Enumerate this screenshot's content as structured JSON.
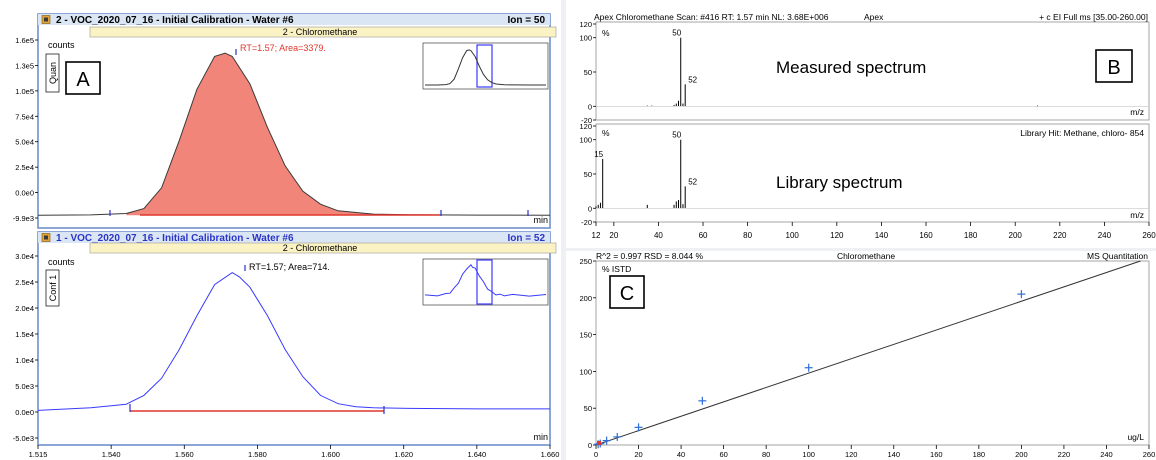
{
  "colors": {
    "panel_border": "#6f8fce",
    "header_bar": "#dbe6f5",
    "title_bar": "#fbf3c3",
    "area_fill": "#f2857a",
    "quan_trace": "#3a3a3a",
    "conf_trace": "#3a3aff",
    "baseline": "#e0362c",
    "marker": "#2a34c8",
    "calibration_marker": "#2f6fd8"
  },
  "icons": [
    "chromatogram-icon"
  ],
  "left": {
    "top": {
      "header": "2 - VOC_2020_07_16 - Initial Calibration - Water #6",
      "ion": "Ion = 50",
      "compound": "2 - Chloromethane",
      "ylabel": "counts",
      "side_tag": "Quan",
      "annotation": "RT=1.57; Area=3379.",
      "corner": "A",
      "yticks": [
        "1.6e5",
        "1.3e5",
        "1.0e5",
        "7.5e4",
        "5.0e4",
        "2.5e4",
        "0.0e0",
        "-9.9e3"
      ],
      "xunit": "min"
    },
    "bottom": {
      "header": "1 - VOC_2020_07_16 - Initial Calibration - Water #6",
      "ion": "Ion = 52",
      "compound": "2 - Chloromethane",
      "ylabel": "counts",
      "side_tag": "Conf 1",
      "annotation": "RT=1.57; Area=714.",
      "yticks": [
        "3.0e4",
        "2.5e4",
        "2.0e4",
        "1.5e4",
        "1.0e4",
        "5.0e3",
        "0.0e0",
        "-5.0e3"
      ],
      "xunit": "min"
    },
    "xticks": [
      "1.515",
      "1.540",
      "1.560",
      "1.580",
      "1.600",
      "1.620",
      "1.640",
      "1.660"
    ]
  },
  "right": {
    "spectrum_header": {
      "left": "Apex Chloromethane Scan: #416  RT: 1.57 min NL: 3.68E+006",
      "middle": "Apex",
      "right": "+ c EI Full ms [35.00-260.00]"
    },
    "measured": {
      "label": "Measured spectrum",
      "corner": "B",
      "yunit": "%",
      "yticks": [
        "120",
        "100",
        "50",
        "0",
        "-20"
      ],
      "peaks": [
        50,
        52
      ],
      "xunit": "m/z"
    },
    "library": {
      "label": "Library spectrum",
      "hit": "Library Hit: Methane, chloro- 854",
      "yunit": "%",
      "yticks": [
        "120",
        "100",
        "50",
        "0",
        "-20"
      ],
      "peaks": [
        15,
        50,
        52
      ],
      "xunit": "m/z"
    },
    "spectrum_xticks": [
      "12",
      "20",
      "40",
      "60",
      "80",
      "100",
      "120",
      "140",
      "160",
      "180",
      "200",
      "220",
      "240",
      "260"
    ],
    "calibration": {
      "header_left": "R^2 = 0.997  RSD = 8.044 %",
      "header_middle": "Chloromethane",
      "header_right": "MS Quantitation",
      "yunit": "% ISTD",
      "xunit": "ug/L",
      "corner": "C",
      "yticks": [
        "250",
        "200",
        "150",
        "100",
        "50",
        "0"
      ],
      "xticks": [
        "0",
        "20",
        "40",
        "60",
        "80",
        "100",
        "120",
        "140",
        "160",
        "180",
        "200",
        "220",
        "240",
        "260"
      ]
    }
  },
  "chart_data": [
    {
      "type": "line",
      "title": "2 - Chloromethane",
      "ylabel": "counts",
      "xlabel": "min",
      "xlim": [
        1.515,
        1.66
      ],
      "ylim": [
        -9900,
        160000
      ],
      "series": [
        {
          "name": "Ion = 50",
          "x": [
            1.515,
            1.53,
            1.54,
            1.545,
            1.55,
            1.555,
            1.56,
            1.565,
            1.568,
            1.57,
            1.575,
            1.58,
            1.585,
            1.59,
            1.595,
            1.6,
            1.61,
            1.62,
            1.64,
            1.66
          ],
          "y": [
            0,
            200,
            1500,
            6000,
            25000,
            68000,
            115000,
            145000,
            148000,
            145000,
            120000,
            80000,
            45000,
            22000,
            10000,
            4000,
            1000,
            300,
            100,
            0
          ]
        }
      ]
    },
    {
      "type": "line",
      "title": "2 - Chloromethane",
      "ylabel": "counts",
      "xlabel": "min",
      "xlim": [
        1.515,
        1.66
      ],
      "ylim": [
        -5000,
        30000
      ],
      "series": [
        {
          "name": "Ion = 52",
          "x": [
            1.515,
            1.53,
            1.54,
            1.545,
            1.55,
            1.555,
            1.56,
            1.565,
            1.57,
            1.572,
            1.575,
            1.58,
            1.585,
            1.59,
            1.595,
            1.6,
            1.605,
            1.61,
            1.62,
            1.64,
            1.66
          ],
          "y": [
            300,
            800,
            1500,
            3200,
            6500,
            12000,
            18500,
            24500,
            26800,
            26000,
            24000,
            18500,
            12000,
            6800,
            3200,
            1600,
            1000,
            800,
            700,
            600,
            600
          ]
        }
      ]
    },
    {
      "type": "bar",
      "title": "Measured spectrum",
      "ylabel": "%",
      "xlabel": "m/z",
      "xlim": [
        12,
        260
      ],
      "ylim": [
        -20,
        120
      ],
      "series": [
        {
          "name": "Measured spectrum",
          "x": [
            35,
            37,
            47,
            48,
            49,
            50,
            51,
            52
          ],
          "y": [
            1,
            1,
            2,
            4,
            8,
            100,
            4,
            32
          ]
        }
      ]
    },
    {
      "type": "bar",
      "title": "Library spectrum",
      "ylabel": "%",
      "xlabel": "m/z",
      "xlim": [
        12,
        260
      ],
      "ylim": [
        -20,
        120
      ],
      "series": [
        {
          "name": "Library spectrum",
          "x": [
            12,
            13,
            14,
            15,
            35,
            47,
            48,
            49,
            50,
            51,
            52
          ],
          "y": [
            3,
            5,
            8,
            72,
            5,
            5,
            10,
            12,
            100,
            6,
            32
          ]
        }
      ]
    },
    {
      "type": "scatter",
      "title": "Chloromethane",
      "ylabel": "% ISTD",
      "xlabel": "ug/L",
      "xlim": [
        0,
        260
      ],
      "ylim": [
        0,
        250
      ],
      "series": [
        {
          "name": "calibration points",
          "x": [
            1,
            2,
            5,
            10,
            20,
            50,
            100,
            200
          ],
          "y": [
            1,
            2,
            6,
            11,
            24,
            60,
            105,
            205
          ]
        },
        {
          "name": "calibration fit",
          "x": [
            0,
            256
          ],
          "y": [
            0,
            250
          ]
        }
      ]
    }
  ]
}
